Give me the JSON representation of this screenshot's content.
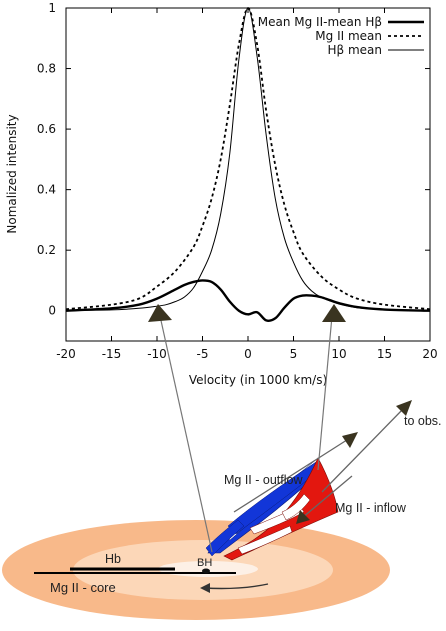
{
  "chart_data": {
    "type": "line",
    "title": "",
    "xlabel": "Velocity (in 1000 km/s)",
    "ylabel": "Nomalized intensity",
    "xlim": [
      -20,
      20
    ],
    "ylim": [
      -0.1,
      1.0
    ],
    "x_ticks": [
      "-20",
      "-15",
      "-10",
      "-5",
      "0",
      "5",
      "10",
      "15",
      "20"
    ],
    "y_ticks": [
      "0",
      "0.2",
      "0.4",
      "0.6",
      "0.8",
      "1"
    ],
    "legend_position": "top-right",
    "grid": false,
    "series": [
      {
        "name": "Mean Mg II-mean Hβ",
        "style": "thick-solid",
        "x": [
          -20,
          -15,
          -12,
          -10,
          -8,
          -7,
          -6,
          -5,
          -4,
          -3,
          -2,
          -1,
          0,
          1,
          2,
          3,
          4,
          5,
          6,
          7,
          8,
          9,
          10,
          12,
          15,
          20
        ],
        "y": [
          0.0,
          0.008,
          0.02,
          0.04,
          0.07,
          0.085,
          0.095,
          0.1,
          0.095,
          0.07,
          0.03,
          0.0,
          -0.012,
          -0.005,
          -0.032,
          -0.025,
          0.01,
          0.04,
          0.05,
          0.05,
          0.045,
          0.035,
          0.025,
          0.012,
          0.004,
          0.0
        ]
      },
      {
        "name": "Mg II mean",
        "style": "dashed",
        "x": [
          -20,
          -15,
          -12,
          -10,
          -8,
          -6,
          -5,
          -4,
          -3,
          -2,
          -1,
          0,
          1,
          2,
          3,
          4,
          5,
          6,
          8,
          10,
          12,
          15,
          20
        ],
        "y": [
          0.005,
          0.02,
          0.04,
          0.08,
          0.13,
          0.21,
          0.28,
          0.37,
          0.5,
          0.68,
          0.88,
          1.0,
          0.88,
          0.66,
          0.48,
          0.35,
          0.26,
          0.19,
          0.115,
          0.07,
          0.04,
          0.02,
          0.005
        ]
      },
      {
        "name": "Hβ mean",
        "style": "thin-solid",
        "x": [
          -20,
          -15,
          -12,
          -10,
          -9,
          -8,
          -7,
          -6,
          -5,
          -4,
          -3,
          -2,
          -1,
          0,
          1,
          2,
          3,
          4,
          5,
          6,
          7,
          8,
          10,
          12,
          15,
          20
        ],
        "y": [
          0.001,
          0.003,
          0.008,
          0.015,
          0.02,
          0.03,
          0.045,
          0.075,
          0.13,
          0.2,
          0.32,
          0.52,
          0.83,
          1.0,
          0.84,
          0.58,
          0.37,
          0.24,
          0.16,
          0.1,
          0.065,
          0.045,
          0.022,
          0.01,
          0.004,
          0.001
        ]
      }
    ]
  },
  "diagram": {
    "labels": {
      "to_obs": "to obs.",
      "outflow": "Mg II - outflow",
      "inflow": "Mg II - inflow",
      "hb": "Hb",
      "bh": "BH",
      "core": "Mg II - core"
    },
    "colors": {
      "disk_outer": "#f8b98a",
      "disk_inner": "#fcd7b8",
      "disk_core": "#fdf0e6",
      "outflow": "#1236d8",
      "inflow": "#e3170f",
      "arrow_head": "#3a3420",
      "connector": "#7a7a7a"
    }
  }
}
